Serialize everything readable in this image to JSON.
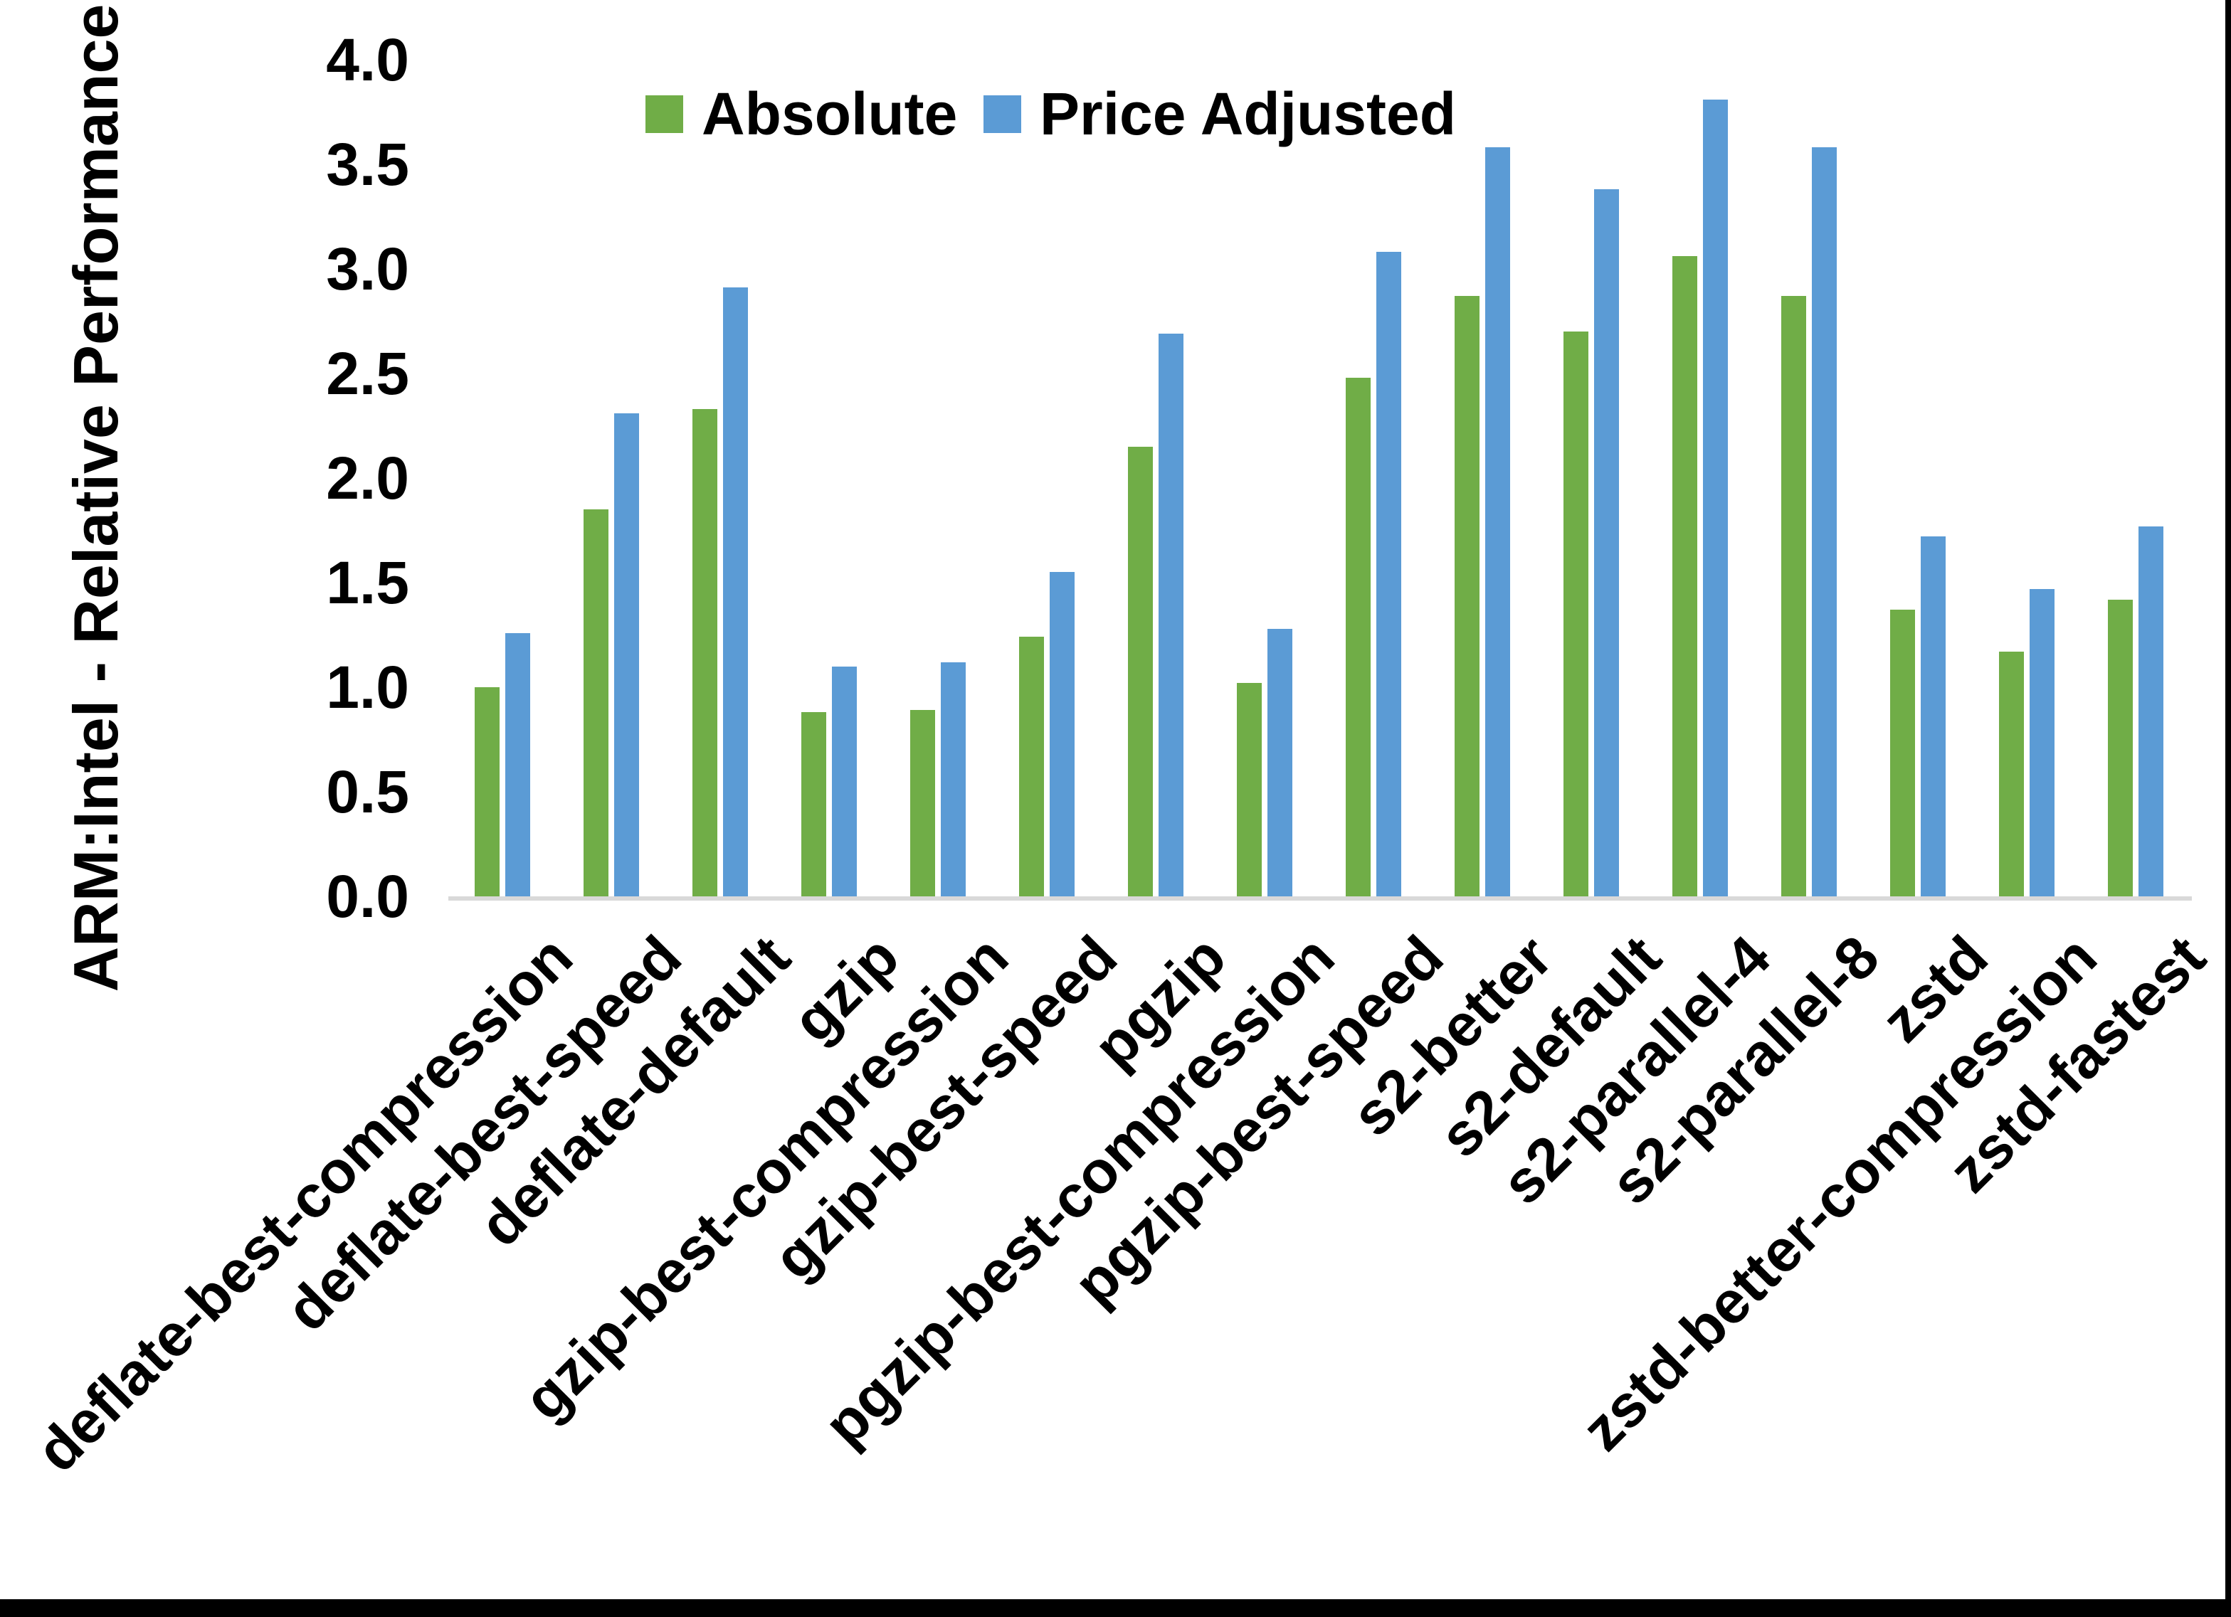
{
  "chart_data": {
    "type": "bar",
    "bar_mode": "grouped",
    "ylabel": "ARM:Intel - Relative Performance",
    "xlabel": "",
    "ylim": [
      0.0,
      4.0
    ],
    "ytick_step": 0.5,
    "ytick_labels": [
      "0.0",
      "0.5",
      "1.0",
      "1.5",
      "2.0",
      "2.5",
      "3.0",
      "3.5",
      "4.0"
    ],
    "grid": false,
    "legend_position": "top",
    "categories": [
      "deflate-best-compression",
      "deflate-best-speed",
      "deflate-default",
      "gzip",
      "gzip-best-compression",
      "gzip-best-speed",
      "pgzip",
      "pgzip-best-compression",
      "pgzip-best-speed",
      "s2-better",
      "s2-default",
      "s2-parallel-4",
      "s2-parallel-8",
      "zstd",
      "zstd-better-compression",
      "zstd-fastest"
    ],
    "series": [
      {
        "name": "Absolute",
        "color": "#70AD47",
        "values": [
          1.0,
          1.85,
          2.33,
          0.88,
          0.89,
          1.24,
          2.15,
          1.02,
          2.48,
          2.87,
          2.7,
          3.06,
          2.87,
          1.37,
          1.17,
          1.42
        ]
      },
      {
        "name": "Price Adjusted",
        "color": "#5B9BD5",
        "values": [
          1.26,
          2.31,
          2.91,
          1.1,
          1.12,
          1.55,
          2.69,
          1.28,
          3.08,
          3.58,
          3.38,
          3.81,
          3.58,
          1.72,
          1.47,
          1.77
        ]
      }
    ],
    "colors": {
      "axis_line": "#d9d9d9",
      "text": "#000000",
      "frame_border": "#000000",
      "background": "#ffffff"
    }
  }
}
